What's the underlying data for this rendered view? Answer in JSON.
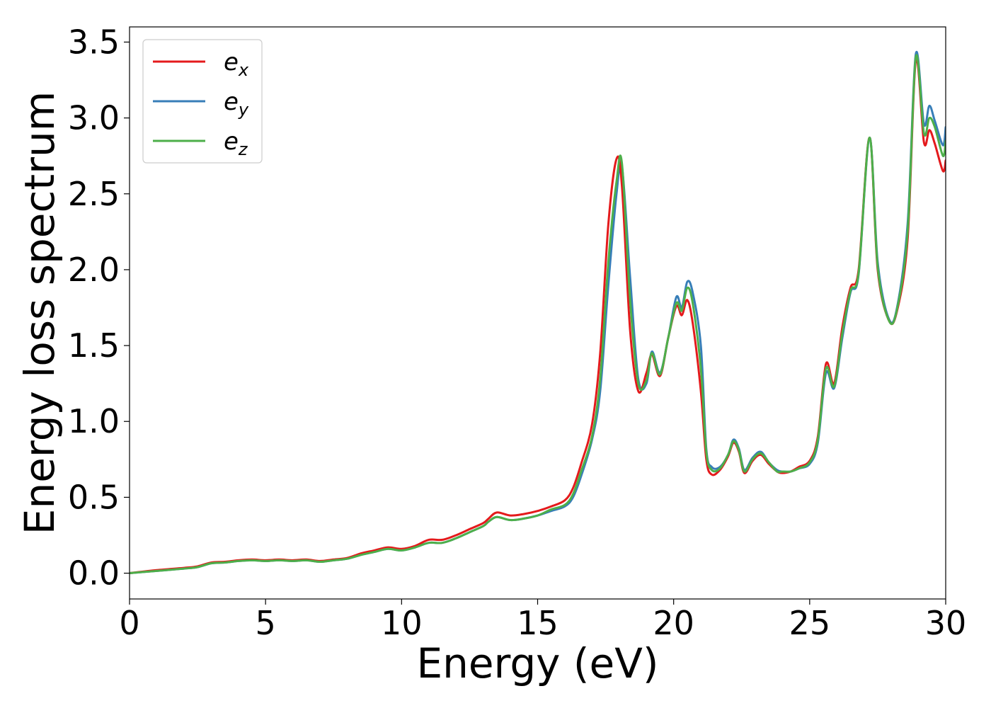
{
  "chart_data": {
    "type": "line",
    "xlabel": "Energy (eV)",
    "ylabel": "Energy loss spectrum",
    "xlim": [
      0,
      30
    ],
    "ylim": [
      -0.17,
      3.6
    ],
    "xticks": [
      0,
      5,
      10,
      15,
      20,
      25,
      30
    ],
    "yticks": [
      0.0,
      0.5,
      1.0,
      1.5,
      2.0,
      2.5,
      3.0,
      3.5
    ],
    "xtick_labels": [
      "0",
      "5",
      "10",
      "15",
      "20",
      "25",
      "30"
    ],
    "ytick_labels": [
      "0.0",
      "0.5",
      "1.0",
      "1.5",
      "2.0",
      "2.5",
      "3.0",
      "3.5"
    ],
    "grid": false,
    "legend_position": "top-left",
    "series": [
      {
        "name": "e",
        "subscript": "x",
        "color": "#e41a1c",
        "x": [
          0,
          1,
          2,
          2.5,
          3,
          3.5,
          4,
          4.5,
          5,
          5.5,
          6,
          6.5,
          7,
          7.5,
          8,
          8.5,
          9,
          9.5,
          10,
          10.5,
          11,
          11.5,
          12,
          12.5,
          13,
          13.2,
          13.5,
          14,
          14.5,
          15,
          15.5,
          16,
          16.3,
          16.6,
          17,
          17.3,
          17.6,
          17.9,
          18.1,
          18.4,
          18.7,
          19,
          19.2,
          19.5,
          19.8,
          20.1,
          20.3,
          20.5,
          20.7,
          21,
          21.2,
          21.4,
          21.7,
          22,
          22.2,
          22.4,
          22.6,
          22.9,
          23.2,
          23.5,
          23.8,
          24,
          24.3,
          24.6,
          25,
          25.3,
          25.6,
          25.9,
          26.2,
          26.5,
          26.8,
          27.2,
          27.5,
          27.9,
          28.2,
          28.6,
          28.9,
          29.2,
          29.4,
          29.6,
          29.9,
          30
        ],
        "values": [
          0.0,
          0.02,
          0.035,
          0.045,
          0.07,
          0.075,
          0.085,
          0.09,
          0.085,
          0.09,
          0.085,
          0.09,
          0.08,
          0.09,
          0.1,
          0.13,
          0.15,
          0.17,
          0.16,
          0.18,
          0.22,
          0.22,
          0.25,
          0.29,
          0.33,
          0.36,
          0.4,
          0.38,
          0.39,
          0.41,
          0.44,
          0.48,
          0.56,
          0.72,
          0.98,
          1.45,
          2.3,
          2.73,
          2.55,
          1.6,
          1.2,
          1.32,
          1.44,
          1.3,
          1.55,
          1.76,
          1.7,
          1.8,
          1.65,
          1.2,
          0.75,
          0.65,
          0.68,
          0.77,
          0.86,
          0.8,
          0.66,
          0.74,
          0.78,
          0.72,
          0.67,
          0.66,
          0.67,
          0.7,
          0.74,
          0.9,
          1.38,
          1.25,
          1.62,
          1.88,
          2.0,
          2.87,
          2.0,
          1.67,
          1.72,
          2.2,
          3.38,
          2.84,
          2.92,
          2.83,
          2.65,
          2.72
        ]
      },
      {
        "name": "e",
        "subscript": "y",
        "color": "#377eb8",
        "x": [
          0,
          1,
          2,
          2.5,
          3,
          3.5,
          4,
          4.5,
          5,
          5.5,
          6,
          6.5,
          7,
          7.5,
          8,
          8.5,
          9,
          9.5,
          10,
          10.5,
          11,
          11.5,
          12,
          12.5,
          13,
          13.2,
          13.5,
          14,
          14.5,
          15,
          15.5,
          16,
          16.3,
          16.6,
          17,
          17.3,
          17.6,
          17.9,
          18.1,
          18.4,
          18.7,
          19,
          19.2,
          19.5,
          19.8,
          20.1,
          20.3,
          20.5,
          20.7,
          21,
          21.2,
          21.4,
          21.7,
          22,
          22.2,
          22.4,
          22.6,
          22.9,
          23.2,
          23.5,
          23.8,
          24,
          24.3,
          24.6,
          25,
          25.3,
          25.6,
          25.9,
          26.2,
          26.5,
          26.8,
          27.2,
          27.5,
          27.9,
          28.2,
          28.6,
          28.9,
          29.2,
          29.4,
          29.6,
          29.9,
          30
        ],
        "values": [
          0.0,
          0.015,
          0.03,
          0.04,
          0.065,
          0.07,
          0.08,
          0.085,
          0.08,
          0.085,
          0.08,
          0.085,
          0.075,
          0.085,
          0.095,
          0.12,
          0.14,
          0.16,
          0.15,
          0.17,
          0.2,
          0.2,
          0.23,
          0.27,
          0.31,
          0.34,
          0.37,
          0.35,
          0.36,
          0.38,
          0.41,
          0.44,
          0.5,
          0.64,
          0.88,
          1.2,
          1.9,
          2.5,
          2.68,
          1.95,
          1.28,
          1.25,
          1.46,
          1.32,
          1.55,
          1.82,
          1.75,
          1.92,
          1.85,
          1.5,
          0.82,
          0.7,
          0.7,
          0.78,
          0.88,
          0.82,
          0.68,
          0.76,
          0.8,
          0.73,
          0.68,
          0.67,
          0.67,
          0.69,
          0.72,
          0.86,
          1.32,
          1.22,
          1.55,
          1.85,
          1.97,
          2.87,
          2.05,
          1.68,
          1.74,
          2.3,
          3.42,
          2.96,
          3.08,
          2.98,
          2.82,
          2.94
        ]
      },
      {
        "name": "e",
        "subscript": "z",
        "color": "#4daf4a",
        "x": [
          0,
          1,
          2,
          2.5,
          3,
          3.5,
          4,
          4.5,
          5,
          5.5,
          6,
          6.5,
          7,
          7.5,
          8,
          8.5,
          9,
          9.5,
          10,
          10.5,
          11,
          11.5,
          12,
          12.5,
          13,
          13.2,
          13.5,
          14,
          14.5,
          15,
          15.5,
          16,
          16.3,
          16.6,
          17,
          17.3,
          17.6,
          17.9,
          18.1,
          18.4,
          18.7,
          19,
          19.2,
          19.5,
          19.8,
          20.1,
          20.3,
          20.5,
          20.7,
          21,
          21.2,
          21.4,
          21.7,
          22,
          22.2,
          22.4,
          22.6,
          22.9,
          23.2,
          23.5,
          23.8,
          24,
          24.3,
          24.6,
          25,
          25.3,
          25.6,
          25.9,
          26.2,
          26.5,
          26.8,
          27.2,
          27.5,
          27.9,
          28.2,
          28.6,
          28.9,
          29.2,
          29.4,
          29.6,
          29.9,
          30
        ],
        "values": [
          0.0,
          0.015,
          0.03,
          0.04,
          0.065,
          0.07,
          0.08,
          0.085,
          0.08,
          0.085,
          0.08,
          0.085,
          0.075,
          0.085,
          0.095,
          0.12,
          0.14,
          0.16,
          0.15,
          0.17,
          0.2,
          0.2,
          0.23,
          0.27,
          0.31,
          0.34,
          0.37,
          0.35,
          0.36,
          0.38,
          0.42,
          0.45,
          0.52,
          0.67,
          0.9,
          1.28,
          2.05,
          2.58,
          2.7,
          1.8,
          1.25,
          1.27,
          1.45,
          1.31,
          1.55,
          1.78,
          1.73,
          1.88,
          1.78,
          1.35,
          0.8,
          0.68,
          0.69,
          0.78,
          0.87,
          0.81,
          0.67,
          0.75,
          0.79,
          0.73,
          0.67,
          0.67,
          0.67,
          0.69,
          0.73,
          0.88,
          1.35,
          1.23,
          1.58,
          1.86,
          1.98,
          2.87,
          2.02,
          1.67,
          1.73,
          2.25,
          3.4,
          2.9,
          3.0,
          2.94,
          2.75,
          2.85
        ]
      }
    ]
  }
}
